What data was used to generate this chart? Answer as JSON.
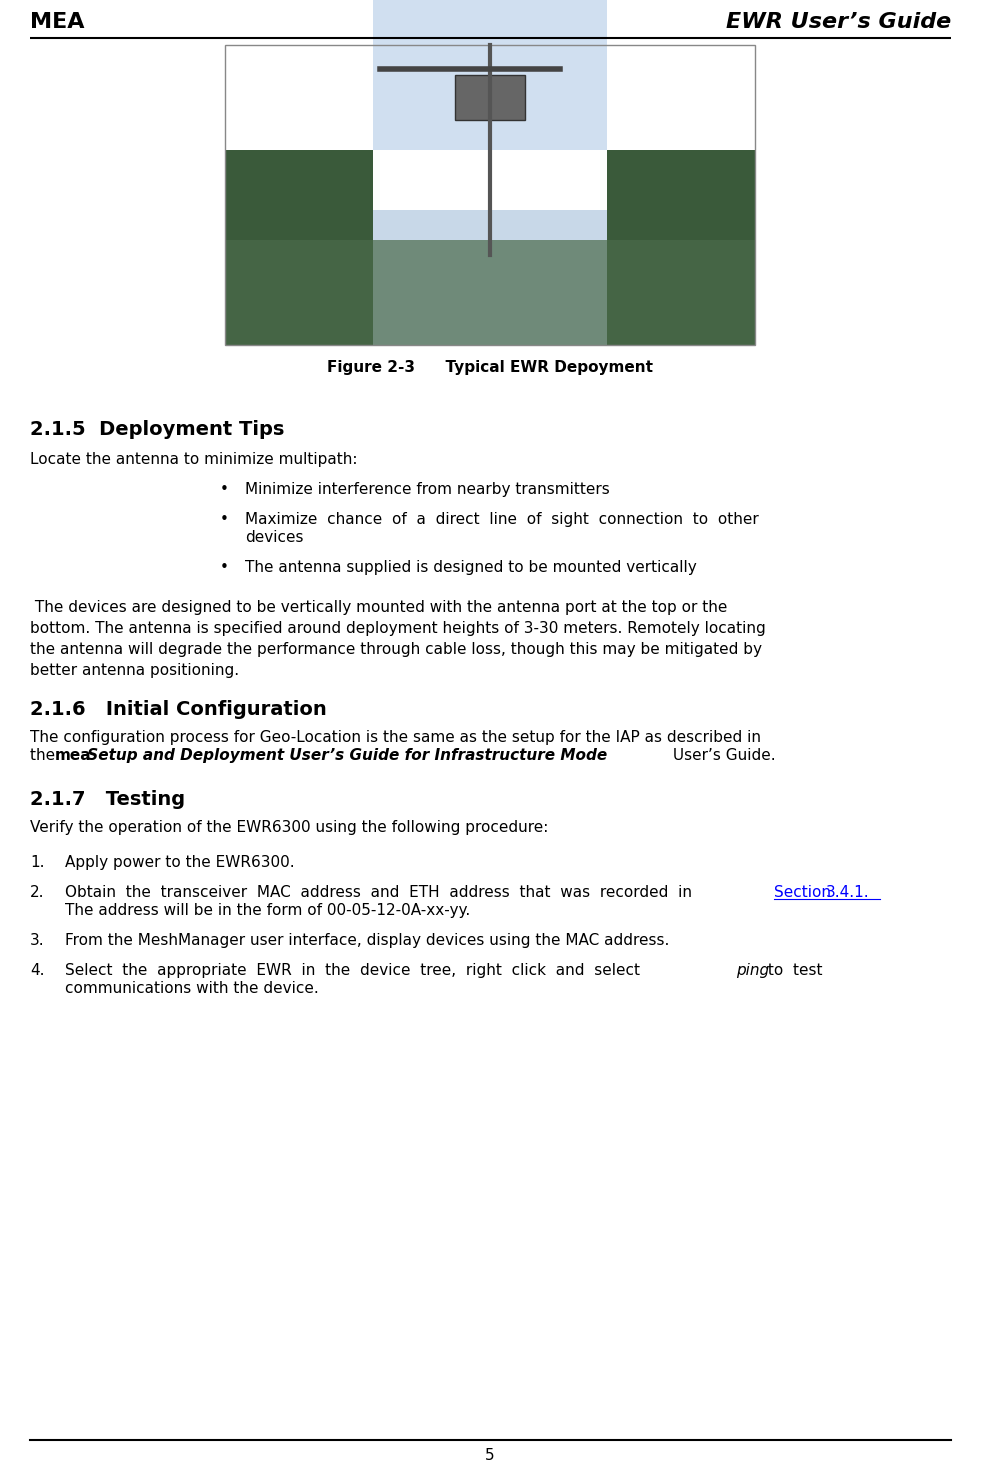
{
  "header_left": "MEA",
  "header_right": "EWR User’s Guide",
  "figure_caption": "Figure 2-3  Typical EWR Depoyment",
  "section_215_title": "2.1.5  Deployment Tips",
  "section_215_intro": "Locate the antenna to minimize multipath:",
  "bullets": [
    "Minimize interference from nearby transmitters",
    "Maximize chance of a direct line of sight connection to other devices",
    "The antenna supplied is designed to be mounted vertically"
  ],
  "paragraph_215": " The devices are designed to be vertically mounted with the antenna port at the top or the bottom. The antenna is specified around deployment heights of 3-30 meters. Remotely locating the antenna will degrade the performance through cable loss, though this may be mitigated by better antenna positioning.",
  "section_216_title": "2.1.6   Initial Configuration",
  "section_217_title": "2.1.7   Testing",
  "section_217_intro": "Verify the operation of the EWR6300 using the following procedure:",
  "page_number": "5",
  "bg_color": "#ffffff",
  "text_color": "#000000",
  "link_color": "#0000ff"
}
